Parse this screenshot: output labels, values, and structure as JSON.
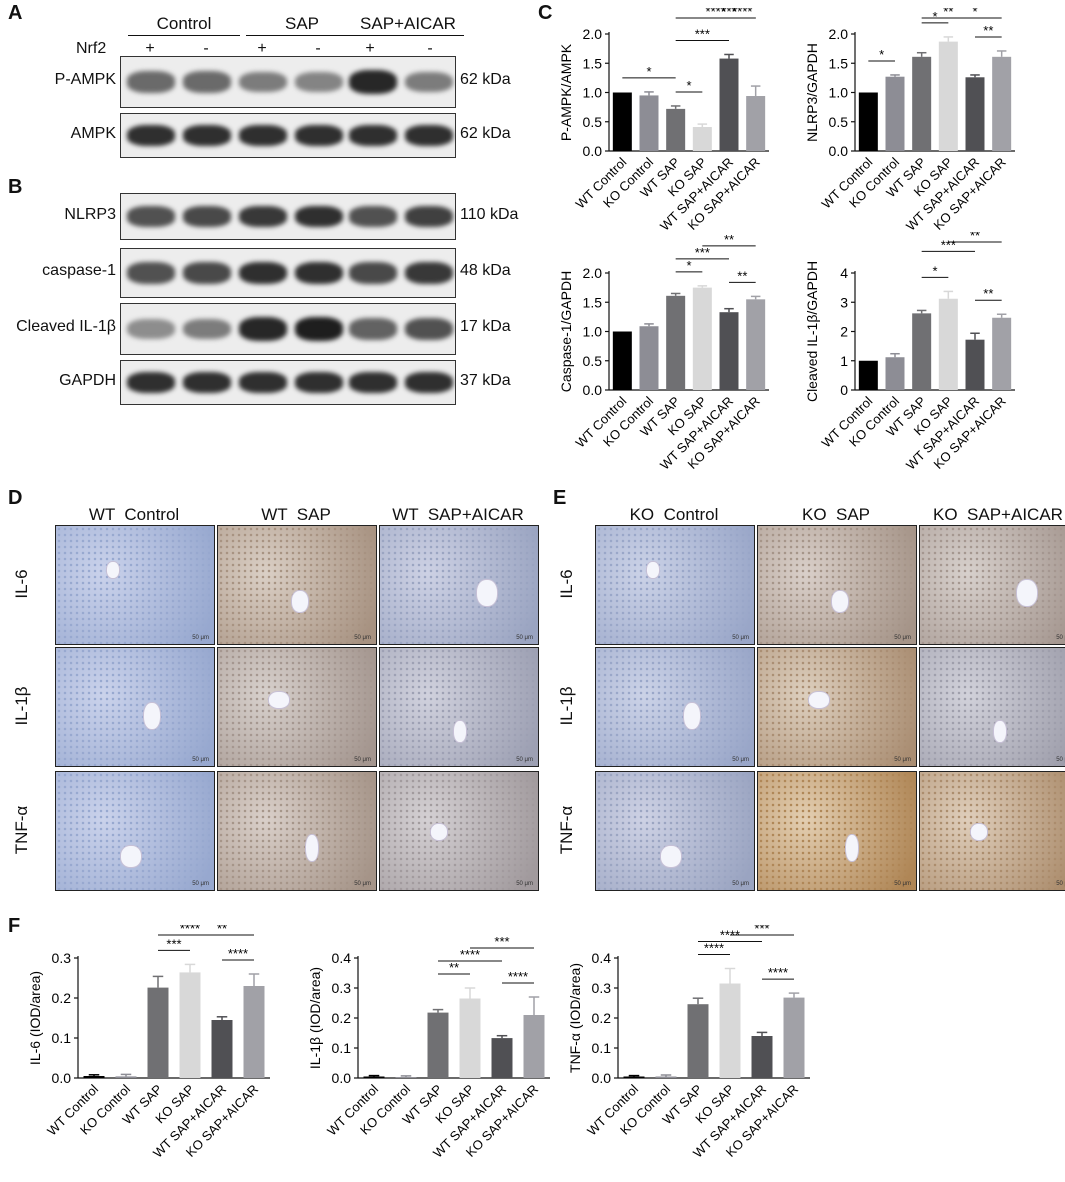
{
  "panels": {
    "A": "A",
    "B": "B",
    "C": "C",
    "D": "D",
    "E": "E",
    "F": "F"
  },
  "blot": {
    "groups": [
      "Control",
      "SAP",
      "SAP+AICAR"
    ],
    "nrf2_label": "Nrf2",
    "nrf2_signs": [
      "+",
      "-",
      "+",
      "-",
      "+",
      "-"
    ],
    "rows": [
      {
        "name": "P-AMPK",
        "kda": "62 kDa",
        "intensity": [
          0.55,
          0.55,
          0.45,
          0.4,
          0.95,
          0.45
        ]
      },
      {
        "name": "AMPK",
        "kda": "62 kDa",
        "intensity": [
          0.9,
          0.9,
          0.9,
          0.9,
          0.9,
          0.9
        ]
      },
      {
        "name": "NLRP3",
        "kda": "110 kDa",
        "intensity": [
          0.7,
          0.75,
          0.85,
          0.9,
          0.7,
          0.8
        ]
      },
      {
        "name": "caspase-1",
        "kda": "48 kDa",
        "intensity": [
          0.7,
          0.75,
          0.9,
          0.9,
          0.75,
          0.85
        ]
      },
      {
        "name": "Cleaved IL-1β",
        "kda": "17 kDa",
        "intensity": [
          0.35,
          0.45,
          0.95,
          1.0,
          0.6,
          0.7
        ]
      },
      {
        "name": "GAPDH",
        "kda": "37 kDa",
        "intensity": [
          0.9,
          0.9,
          0.9,
          0.9,
          0.9,
          0.9
        ]
      }
    ]
  },
  "ihc": {
    "D": {
      "headers": [
        "WT  Control",
        "WT  SAP",
        "WT  SAP+AICAR"
      ],
      "rows": [
        "IL-6",
        "IL-1β",
        "TNF-α"
      ],
      "scale": "50 μm",
      "stain": [
        [
          0.05,
          0.6,
          0.15
        ],
        [
          0.05,
          0.5,
          0.25
        ],
        [
          0.05,
          0.55,
          0.4
        ]
      ]
    },
    "E": {
      "headers": [
        "KO  Control",
        "KO  SAP",
        "KO  SAP+AICAR"
      ],
      "rows": [
        "IL-6",
        "IL-1β",
        "TNF-α"
      ],
      "scale": "50 μm",
      "stain": [
        [
          0.1,
          0.55,
          0.5
        ],
        [
          0.1,
          0.7,
          0.3
        ],
        [
          0.15,
          0.9,
          0.75
        ]
      ]
    }
  },
  "chart_data": [
    {
      "type": "bar",
      "ylabel": "P-AMPK/AMPK",
      "categories": [
        "WT Control",
        "KO Control",
        "WT SAP",
        "KO SAP",
        "WT SAP+AICAR",
        "KO SAP+AICAR"
      ],
      "values": [
        1.0,
        0.95,
        0.72,
        0.41,
        1.58,
        0.94
      ],
      "errors": [
        0,
        0.06,
        0.05,
        0.05,
        0.07,
        0.17
      ],
      "ylim": [
        0,
        2.0
      ],
      "yticks": [
        "0.0",
        "0.5",
        "1.0",
        "1.5",
        "2.0"
      ],
      "sig": [
        {
          "a": 0,
          "b": 2,
          "label": "*"
        },
        {
          "a": 2,
          "b": 4,
          "label": "***"
        },
        {
          "a": 2,
          "b": 3,
          "label": "*"
        },
        {
          "a": 2,
          "b": 5,
          "label": "****"
        },
        {
          "a": 3,
          "b": 5,
          "label": "***"
        },
        {
          "a": 4,
          "b": 5,
          "label": "****"
        }
      ]
    },
    {
      "type": "bar",
      "ylabel": "NLRP3/GAPDH",
      "categories": [
        "WT Control",
        "KO Control",
        "WT SAP",
        "KO SAP",
        "WT SAP+AICAR",
        "KO SAP+AICAR"
      ],
      "values": [
        1.0,
        1.27,
        1.61,
        1.87,
        1.26,
        1.61
      ],
      "errors": [
        0,
        0.03,
        0.07,
        0.08,
        0.04,
        0.1
      ],
      "ylim": [
        0,
        2.0
      ],
      "yticks": [
        "0.0",
        "0.5",
        "1.0",
        "1.5",
        "2.0"
      ],
      "sig": [
        {
          "a": 0,
          "b": 1,
          "label": "*"
        },
        {
          "a": 2,
          "b": 3,
          "label": "*"
        },
        {
          "a": 2,
          "b": 4,
          "label": "**"
        },
        {
          "a": 3,
          "b": 5,
          "label": "*"
        },
        {
          "a": 4,
          "b": 5,
          "label": "**"
        }
      ]
    },
    {
      "type": "bar",
      "ylabel": "Caspase-1/GAPDH",
      "categories": [
        "WT Control",
        "KO Control",
        "WT SAP",
        "KO SAP",
        "WT SAP+AICAR",
        "KO SAP+AICAR"
      ],
      "values": [
        1.0,
        1.09,
        1.61,
        1.75,
        1.33,
        1.55
      ],
      "errors": [
        0,
        0.04,
        0.04,
        0.03,
        0.06,
        0.05
      ],
      "ylim": [
        0,
        2.0
      ],
      "yticks": [
        "0.0",
        "0.5",
        "1.0",
        "1.5",
        "2.0"
      ],
      "sig": [
        {
          "a": 2,
          "b": 3,
          "label": "*"
        },
        {
          "a": 2,
          "b": 4,
          "label": "***"
        },
        {
          "a": 3,
          "b": 5,
          "label": "**"
        },
        {
          "a": 4,
          "b": 5,
          "label": "**"
        }
      ]
    },
    {
      "type": "bar",
      "ylabel": "Cleaved IL-1β/GAPDH",
      "categories": [
        "WT Control",
        "KO Control",
        "WT SAP",
        "KO SAP",
        "WT SAP+AICAR",
        "KO SAP+AICAR"
      ],
      "values": [
        1.0,
        1.12,
        2.62,
        3.12,
        1.72,
        2.47
      ],
      "errors": [
        0,
        0.12,
        0.1,
        0.25,
        0.22,
        0.12
      ],
      "ylim": [
        0,
        4
      ],
      "yticks": [
        "0",
        "1",
        "2",
        "3",
        "4"
      ],
      "sig": [
        {
          "a": 2,
          "b": 3,
          "label": "*"
        },
        {
          "a": 2,
          "b": 4,
          "label": "***"
        },
        {
          "a": 3,
          "b": 5,
          "label": "**"
        },
        {
          "a": 4,
          "b": 5,
          "label": "**"
        }
      ]
    },
    {
      "type": "bar",
      "ylabel": "IL-6 (IOD/area)",
      "categories": [
        "WT Control",
        "KO Control",
        "WT SAP",
        "KO SAP",
        "WT SAP+AICAR",
        "KO SAP+AICAR"
      ],
      "values": [
        0.005,
        0.004,
        0.226,
        0.264,
        0.145,
        0.23
      ],
      "errors": [
        0.003,
        0.005,
        0.028,
        0.02,
        0.008,
        0.03
      ],
      "ylim": [
        0,
        0.3
      ],
      "yticks": [
        "0.0",
        "0.1",
        "0.2",
        "0.3"
      ],
      "sig": [
        {
          "a": 2,
          "b": 3,
          "label": "***"
        },
        {
          "a": 2,
          "b": 4,
          "label": "****"
        },
        {
          "a": 3,
          "b": 5,
          "label": "**"
        },
        {
          "a": 4,
          "b": 5,
          "label": "****"
        }
      ]
    },
    {
      "type": "bar",
      "ylabel": "IL-1β (IOD/area)",
      "categories": [
        "WT Control",
        "KO Control",
        "WT SAP",
        "KO SAP",
        "WT SAP+AICAR",
        "KO SAP+AICAR"
      ],
      "values": [
        0.005,
        0.003,
        0.218,
        0.265,
        0.133,
        0.21
      ],
      "errors": [
        0.003,
        0.004,
        0.01,
        0.035,
        0.008,
        0.06
      ],
      "ylim": [
        0,
        0.4
      ],
      "yticks": [
        "0.0",
        "0.1",
        "0.2",
        "0.3",
        "0.4"
      ],
      "sig": [
        {
          "a": 2,
          "b": 3,
          "label": "**"
        },
        {
          "a": 2,
          "b": 4,
          "label": "****"
        },
        {
          "a": 3,
          "b": 5,
          "label": "***"
        },
        {
          "a": 4,
          "b": 5,
          "label": "****"
        }
      ]
    },
    {
      "type": "bar",
      "ylabel": "TNF-α (IOD/area)",
      "categories": [
        "WT Control",
        "KO Control",
        "WT SAP",
        "KO SAP",
        "WT SAP+AICAR",
        "KO SAP+AICAR"
      ],
      "values": [
        0.005,
        0.005,
        0.246,
        0.315,
        0.14,
        0.268
      ],
      "errors": [
        0.003,
        0.005,
        0.02,
        0.05,
        0.012,
        0.015
      ],
      "ylim": [
        0,
        0.4
      ],
      "yticks": [
        "0.0",
        "0.1",
        "0.2",
        "0.3",
        "0.4"
      ],
      "sig": [
        {
          "a": 2,
          "b": 3,
          "label": "****"
        },
        {
          "a": 2,
          "b": 4,
          "label": "****"
        },
        {
          "a": 3,
          "b": 5,
          "label": "***"
        },
        {
          "a": 4,
          "b": 5,
          "label": "****"
        }
      ]
    }
  ],
  "bar_colors": [
    "#000000",
    "#8d8d95",
    "#707073",
    "#d8d8d8",
    "#505054",
    "#a1a1a7"
  ]
}
